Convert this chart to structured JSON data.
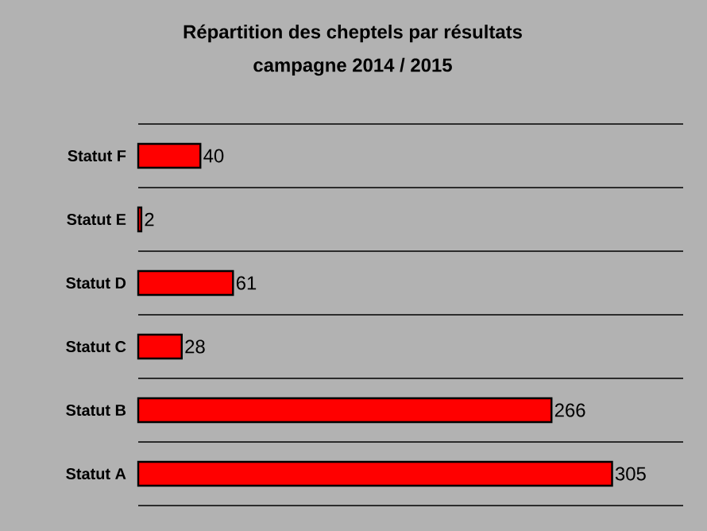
{
  "chart_data": {
    "type": "bar",
    "orientation": "horizontal",
    "title": "Répartition des cheptels par résultats",
    "subtitle": "campagne 2014 / 2015",
    "categories": [
      "Statut F",
      "Statut E",
      "Statut D",
      "Statut C",
      "Statut B",
      "Statut A"
    ],
    "values": [
      40,
      2,
      61,
      28,
      266,
      305
    ],
    "color": "#ff0000",
    "data_labels": true,
    "grid": "y"
  }
}
